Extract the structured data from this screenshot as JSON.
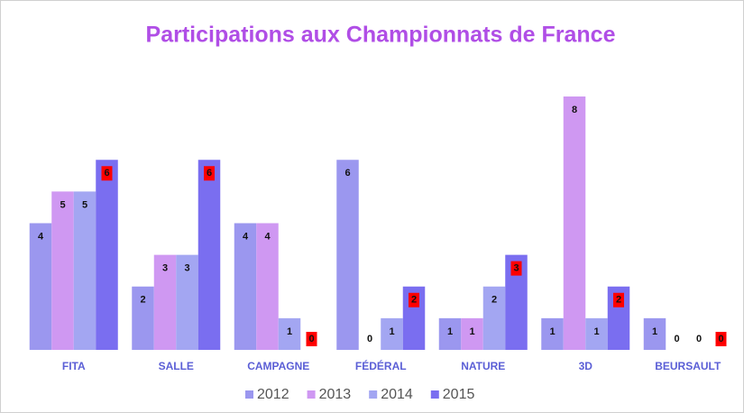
{
  "chart_data": {
    "type": "bar",
    "title": "Participations aux Championnats de France",
    "categories": [
      "FITA",
      "SALLE",
      "CAMPAGNE",
      "FÉDÉRAL",
      "NATURE",
      "3D",
      "BEURSAULT"
    ],
    "series": [
      {
        "name": "2012",
        "color": "#9b97ef",
        "values": [
          4,
          2,
          4,
          6,
          1,
          1,
          1
        ]
      },
      {
        "name": "2013",
        "color": "#cf98f2",
        "values": [
          5,
          3,
          4,
          0,
          1,
          8,
          0
        ]
      },
      {
        "name": "2014",
        "color": "#a3a6f2",
        "values": [
          5,
          3,
          1,
          1,
          2,
          1,
          0
        ]
      },
      {
        "name": "2015",
        "color": "#7a6ef0",
        "label_background": "#ff0000",
        "values": [
          6,
          6,
          0,
          2,
          3,
          2,
          0
        ]
      }
    ],
    "ylim": [
      0,
      8
    ],
    "data_labels": true,
    "legend": "bottom"
  }
}
